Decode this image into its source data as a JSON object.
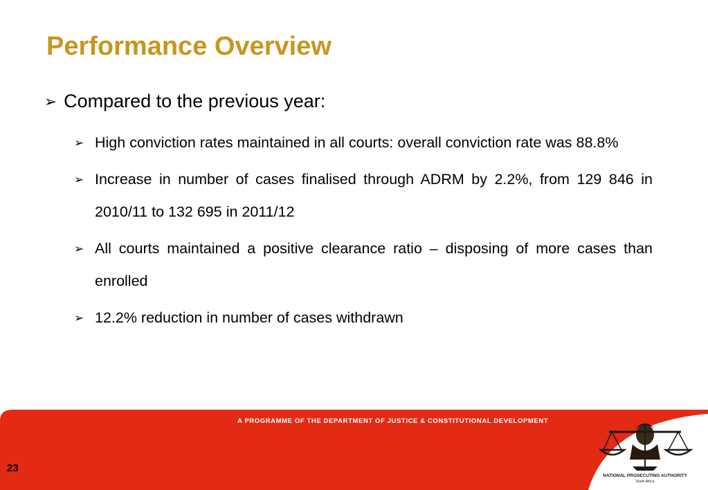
{
  "slide": {
    "title": "Performance Overview",
    "main_bullet": "Compared to the previous year:",
    "sub_bullets": [
      "High conviction rates maintained in all courts: overall conviction rate was 88.8%",
      "Increase in number of cases finalised through ADRM  by 2.2%, from 129 846 in 2010/11 to 132 695 in 2011/12",
      "All courts maintained a positive clearance ratio – disposing of more cases than enrolled",
      "12.2% reduction in number of cases withdrawn"
    ],
    "bullet_glyph": "➢"
  },
  "footer": {
    "programme_text": "A PROGRAMME OF THE DEPARTMENT OF JUSTICE & CONSTITUTIONAL DEVELOPMENT",
    "page_number": "23",
    "logo_name": "NATIONAL PROSECUTING AUTHORITY",
    "logo_subtitle": "South Africa",
    "band_color": "#e32a14",
    "logo_icon": "scales-of-justice-icon"
  },
  "colors": {
    "title": "#c8961e",
    "text": "#000000",
    "footer_band": "#e32a14"
  }
}
